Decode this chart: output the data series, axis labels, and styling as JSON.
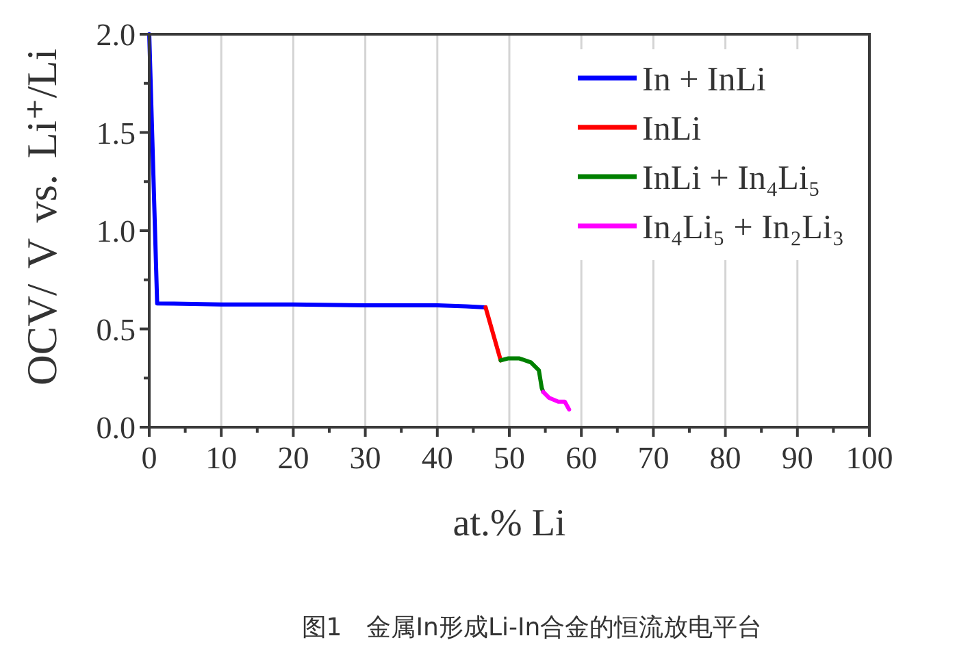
{
  "chart_data": {
    "type": "line",
    "xlabel": "at.% Li",
    "ylabel": "OCV/ V vs. Li⁺/Li",
    "xlim": [
      0,
      100
    ],
    "xticks": [
      0,
      {
        "value": 5,
        "label": null
      },
      10,
      {
        "value": 15,
        "label": null
      },
      20,
      {
        "value": 25,
        "label": null
      },
      30,
      {
        "value": 35,
        "label": null
      },
      40,
      {
        "value": 45,
        "label": null
      },
      50,
      {
        "value": 55,
        "label": null
      },
      60,
      {
        "value": 65,
        "label": null
      },
      70,
      {
        "value": 75,
        "label": null
      },
      80,
      {
        "value": 85,
        "label": null
      },
      90,
      {
        "value": 95,
        "label": null
      },
      100
    ],
    "ylim": [
      0,
      2.0
    ],
    "yticks": [
      {
        "value": 0,
        "label": "0.0"
      },
      {
        "value": 0.25,
        "label": null
      },
      {
        "value": 0.5,
        "label": "0.5"
      },
      {
        "value": 0.75,
        "label": null
      },
      {
        "value": 1.0,
        "label": "1.0"
      },
      {
        "value": 1.25,
        "label": null
      },
      {
        "value": 1.5,
        "label": "1.5"
      },
      {
        "value": 1.75,
        "label": null
      },
      {
        "value": 2.0,
        "label": "2.0"
      }
    ],
    "grid": "x",
    "legend": "top right",
    "series": [
      {
        "name": "In + InLi",
        "color": "#0000ff",
        "x": [
          0,
          1.1,
          10,
          20,
          30,
          40,
          44,
          46.7
        ],
        "values": [
          2.0,
          0.63,
          0.625,
          0.625,
          0.62,
          0.62,
          0.615,
          0.61
        ]
      },
      {
        "name": "InLi",
        "color": "#ff0000",
        "x": [
          46.7,
          48.8
        ],
        "values": [
          0.61,
          0.34
        ]
      },
      {
        "name": "InLi + In₄Li₅",
        "color": "#008000",
        "x": [
          48.8,
          49.8,
          51.4,
          53.0,
          54.1,
          54.5,
          54.7
        ],
        "values": [
          0.34,
          0.35,
          0.35,
          0.33,
          0.29,
          0.2,
          0.18
        ]
      },
      {
        "name": "In₄Li₅ + In₂Li₃",
        "color": "#ff00ff",
        "x": [
          54.7,
          55.5,
          56.8,
          57.7,
          58.3
        ],
        "values": [
          0.18,
          0.15,
          0.13,
          0.13,
          0.09
        ]
      }
    ],
    "annotations": [
      "图1　金属In形成Li-In合金的恒流放电平台"
    ]
  }
}
